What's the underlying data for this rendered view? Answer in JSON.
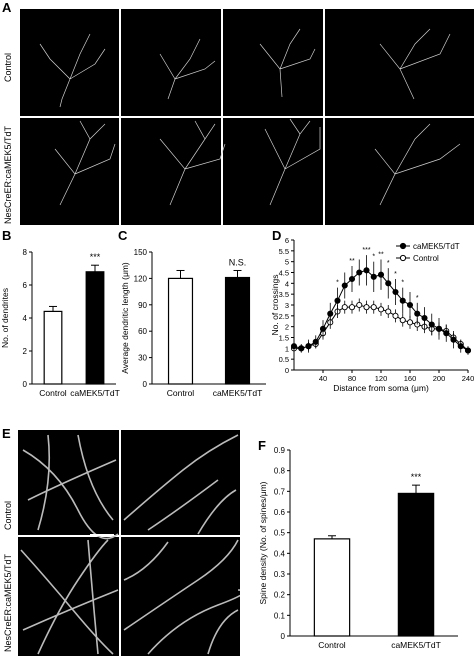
{
  "panel_A": {
    "label": "A",
    "rows": [
      "Control",
      "NesCreER:caMEK5/TdT"
    ]
  },
  "panel_B": {
    "label": "B",
    "ylabel": "No. of dendrites",
    "significance": "***",
    "chart_data": {
      "type": "bar",
      "categories": [
        "Control",
        "caMEK5/TdT"
      ],
      "values": [
        4.4,
        6.8
      ],
      "errors": [
        0.3,
        0.4
      ],
      "colors": [
        "#ffffff",
        "#000000"
      ],
      "ylim": [
        0,
        8
      ],
      "yticks": [
        0,
        2,
        4,
        6,
        8
      ]
    }
  },
  "panel_C": {
    "label": "C",
    "ylabel": "Average dendritic length (μm)",
    "significance": "N.S.",
    "chart_data": {
      "type": "bar",
      "categories": [
        "Control",
        "caMEK5/TdT"
      ],
      "values": [
        120,
        121
      ],
      "errors": [
        9,
        8
      ],
      "colors": [
        "#ffffff",
        "#000000"
      ],
      "ylim": [
        0,
        150
      ],
      "yticks": [
        0,
        30,
        60,
        90,
        120,
        150
      ]
    }
  },
  "panel_D": {
    "label": "D",
    "xlabel": "Distance from soma (μm)",
    "ylabel": "No. of crossings",
    "legend": [
      "caMEK5/TdT",
      "Control"
    ],
    "chart_data": {
      "type": "line",
      "x": [
        0,
        10,
        20,
        30,
        40,
        50,
        60,
        70,
        80,
        90,
        100,
        110,
        120,
        130,
        140,
        150,
        160,
        170,
        180,
        190,
        200,
        210,
        220,
        230,
        240
      ],
      "xlim": [
        0,
        240
      ],
      "xticks": [
        40,
        80,
        120,
        160,
        200,
        240
      ],
      "ylim": [
        0,
        6
      ],
      "yticks": [
        0,
        0.5,
        1,
        1.5,
        2,
        2.5,
        3,
        3.5,
        4,
        4.5,
        5,
        5.5,
        6
      ],
      "series": [
        {
          "name": "caMEK5/TdT",
          "filled": true,
          "values": [
            1.1,
            1.0,
            1.1,
            1.3,
            1.9,
            2.6,
            3.2,
            3.9,
            4.2,
            4.5,
            4.6,
            4.3,
            4.4,
            4.0,
            3.6,
            3.2,
            3.0,
            2.6,
            2.4,
            2.1,
            1.9,
            1.7,
            1.4,
            1.1,
            0.9
          ],
          "errors": [
            0.2,
            0.2,
            0.3,
            0.3,
            0.4,
            0.5,
            0.6,
            0.6,
            0.6,
            0.6,
            0.7,
            0.7,
            0.7,
            0.7,
            0.6,
            0.6,
            0.6,
            0.5,
            0.5,
            0.5,
            0.5,
            0.4,
            0.4,
            0.3,
            0.2
          ]
        },
        {
          "name": "Control",
          "filled": false,
          "values": [
            1.0,
            1.0,
            1.1,
            1.2,
            1.7,
            2.2,
            2.7,
            2.9,
            2.9,
            3.0,
            2.9,
            2.9,
            2.8,
            2.7,
            2.5,
            2.3,
            2.2,
            2.1,
            2.0,
            1.9,
            1.9,
            1.8,
            1.5,
            1.2,
            0.9
          ],
          "errors": [
            0.1,
            0.1,
            0.2,
            0.2,
            0.3,
            0.3,
            0.3,
            0.3,
            0.3,
            0.3,
            0.3,
            0.3,
            0.3,
            0.3,
            0.3,
            0.3,
            0.3,
            0.3,
            0.3,
            0.3,
            0.3,
            0.3,
            0.2,
            0.2,
            0.1
          ]
        }
      ],
      "significance": [
        {
          "x": 60,
          "mark": "*"
        },
        {
          "x": 80,
          "mark": "**"
        },
        {
          "x": 100,
          "mark": "***"
        },
        {
          "x": 110,
          "mark": "*"
        },
        {
          "x": 120,
          "mark": "**"
        },
        {
          "x": 130,
          "mark": "*"
        },
        {
          "x": 140,
          "mark": "*"
        },
        {
          "x": 150,
          "mark": "*"
        },
        {
          "x": 170,
          "mark": "*"
        }
      ]
    }
  },
  "panel_E": {
    "label": "E",
    "rows": [
      "Control",
      "NesCreER:caMEK5/TdT"
    ]
  },
  "panel_F": {
    "label": "F",
    "ylabel": "Spine density (No. of spines/μm)",
    "significance": "***",
    "chart_data": {
      "type": "bar",
      "categories": [
        "Control",
        "caMEK5/TdT"
      ],
      "values": [
        0.47,
        0.69
      ],
      "errors": [
        0.015,
        0.04
      ],
      "colors": [
        "#ffffff",
        "#000000"
      ],
      "ylim": [
        0,
        0.9
      ],
      "yticks": [
        0,
        0.1,
        0.2,
        0.3,
        0.4,
        0.5,
        0.6,
        0.7,
        0.8,
        0.9
      ]
    }
  }
}
